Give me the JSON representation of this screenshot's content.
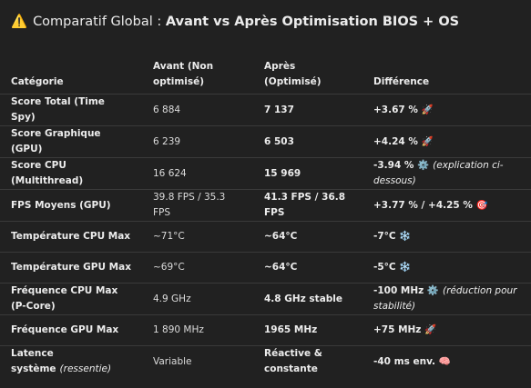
{
  "header": {
    "icon": "⚠️",
    "title_prefix": "Comparatif Global : ",
    "title_bold": "Avant vs Après Optimisation BIOS + OS"
  },
  "table": {
    "columns": [
      "Catégorie",
      "Avant (Non optimisé)",
      "Après (Optimisé)",
      "Différence"
    ],
    "rows": [
      [
        "Score Total (Time Spy)",
        "6 884",
        "7 137",
        "+3.67 % 🚀"
      ],
      [
        "Score Graphique (GPU)",
        "6 239",
        "6 503",
        "+4.24 % 🚀"
      ],
      [
        "Score CPU (Multithread)",
        "16 624",
        "15 969",
        {
          "text": "-3.94 % ⚙️",
          "note": "(explication ci-dessous)"
        }
      ],
      [
        "FPS Moyens (GPU)",
        "39.8 FPS / 35.3 FPS",
        "41.3 FPS / 36.8 FPS",
        "+3.77 % / +4.25 % 🎯"
      ],
      [
        "Température CPU Max",
        "~71°C",
        "~64°C",
        "-7°C ❄️"
      ],
      [
        "Température GPU Max",
        "~69°C",
        "~64°C",
        "-5°C ❄️"
      ],
      [
        "Fréquence CPU Max (P-Core)",
        "4.9 GHz",
        "4.8 GHz stable",
        {
          "text": "-100 MHz ⚙️",
          "note": "(réduction pour stabilité)"
        }
      ],
      [
        "Fréquence GPU Max",
        "1 890 MHz",
        "1965 MHz",
        "+75 MHz 🚀"
      ],
      [
        {
          "text": "Latence système",
          "note": "(ressentie)"
        },
        "Variable",
        "Réactive & constante",
        "-40 ms env. 🧠"
      ]
    ]
  }
}
